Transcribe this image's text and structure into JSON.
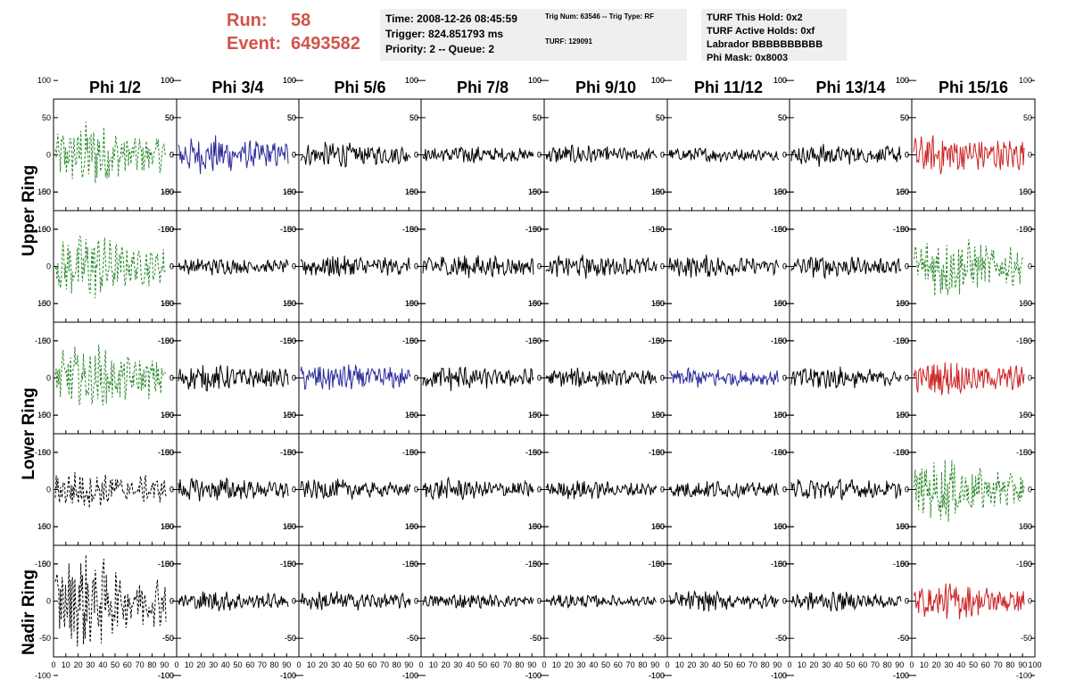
{
  "header": {
    "run_label": "Run:",
    "run_value": "58",
    "event_label": "Event:",
    "event_value": "6493582"
  },
  "info_time": {
    "time": "Time: 2008-12-26 08:45:59",
    "trigger": "Trigger: 824.851793 ms",
    "priority": "Priority: 2 -- Queue: 2"
  },
  "info_trig": {
    "trig": "Trig Num: 63546 -- Trig Type: RF",
    "turf": "TURF: 129091"
  },
  "info_turf": {
    "hold": "TURF This Hold: 0x2",
    "active": "TURF Active Holds: 0xf",
    "labrador": "Labrador BBBBBBBBBB",
    "phimask": "Phi Mask: 0x8003"
  },
  "chart_data": {
    "type": "line",
    "columns": [
      "Phi 1/2",
      "Phi 3/4",
      "Phi 5/6",
      "Phi 7/8",
      "Phi 9/10",
      "Phi 11/12",
      "Phi 13/14",
      "Phi 15/16"
    ],
    "rows": [
      "Upper Ring",
      "Lower Ring",
      "Nadir Ring"
    ],
    "xlim": [
      0,
      100
    ],
    "ylim": [
      -125,
      125
    ],
    "x_ticks": [
      0,
      10,
      20,
      30,
      40,
      50,
      60,
      70,
      80,
      90,
      100
    ],
    "x_tick_labels": [
      "0",
      "10",
      "20",
      "30",
      "40",
      "50",
      "60",
      "70",
      "80",
      "90",
      "100"
    ],
    "y_ticks": [
      -100,
      -50,
      0,
      50,
      100
    ],
    "y_tick_labels": [
      "-100",
      "-50",
      "0",
      "50",
      "100"
    ],
    "colors": {
      "black": "#000000",
      "green": "#2b8a2b",
      "blue": "#2c2c9c",
      "red": "#cc2222"
    },
    "panels": [
      [
        {
          "color": "green",
          "amp": 30,
          "style": "dashed"
        },
        {
          "color": "blue",
          "amp": 22,
          "style": "solid"
        },
        {
          "color": "black",
          "amp": 15,
          "style": "solid"
        },
        {
          "color": "black",
          "amp": 11,
          "style": "solid"
        },
        {
          "color": "black",
          "amp": 12,
          "style": "solid"
        },
        {
          "color": "black",
          "amp": 9,
          "style": "solid"
        },
        {
          "color": "black",
          "amp": 14,
          "style": "solid"
        },
        {
          "color": "red",
          "amp": 25,
          "style": "solid"
        }
      ],
      [
        {
          "color": "green",
          "amp": 30,
          "style": "dashed"
        },
        {
          "color": "black",
          "amp": 10,
          "style": "solid"
        },
        {
          "color": "black",
          "amp": 14,
          "style": "solid"
        },
        {
          "color": "black",
          "amp": 15,
          "style": "solid"
        },
        {
          "color": "black",
          "amp": 14,
          "style": "solid"
        },
        {
          "color": "black",
          "amp": 13,
          "style": "solid"
        },
        {
          "color": "black",
          "amp": 13,
          "style": "solid"
        },
        {
          "color": "green",
          "amp": 30,
          "style": "dashed"
        }
      ],
      [
        {
          "color": "green",
          "amp": 32,
          "style": "dashed"
        },
        {
          "color": "black",
          "amp": 15,
          "style": "solid"
        },
        {
          "color": "blue",
          "amp": 17,
          "style": "solid"
        },
        {
          "color": "black",
          "amp": 15,
          "style": "solid"
        },
        {
          "color": "black",
          "amp": 12,
          "style": "solid"
        },
        {
          "color": "blue",
          "amp": 12,
          "style": "solid"
        },
        {
          "color": "black",
          "amp": 14,
          "style": "solid"
        },
        {
          "color": "red",
          "amp": 20,
          "style": "solid"
        }
      ],
      [
        {
          "color": "black",
          "amp": 22,
          "style": "dashed"
        },
        {
          "color": "black",
          "amp": 15,
          "style": "solid"
        },
        {
          "color": "black",
          "amp": 12,
          "style": "solid"
        },
        {
          "color": "black",
          "amp": 13,
          "style": "solid"
        },
        {
          "color": "black",
          "amp": 11,
          "style": "solid"
        },
        {
          "color": "black",
          "amp": 11,
          "style": "solid"
        },
        {
          "color": "black",
          "amp": 14,
          "style": "solid"
        },
        {
          "color": "green",
          "amp": 30,
          "style": "dashed"
        }
      ],
      [
        {
          "color": "black",
          "amp": 42,
          "style": "dashed"
        },
        {
          "color": "black",
          "amp": 12,
          "style": "solid"
        },
        {
          "color": "black",
          "amp": 12,
          "style": "solid"
        },
        {
          "color": "black",
          "amp": 9,
          "style": "solid"
        },
        {
          "color": "black",
          "amp": 8,
          "style": "solid"
        },
        {
          "color": "black",
          "amp": 12,
          "style": "solid"
        },
        {
          "color": "black",
          "amp": 12,
          "style": "solid"
        },
        {
          "color": "red",
          "amp": 22,
          "style": "solid"
        }
      ]
    ]
  }
}
